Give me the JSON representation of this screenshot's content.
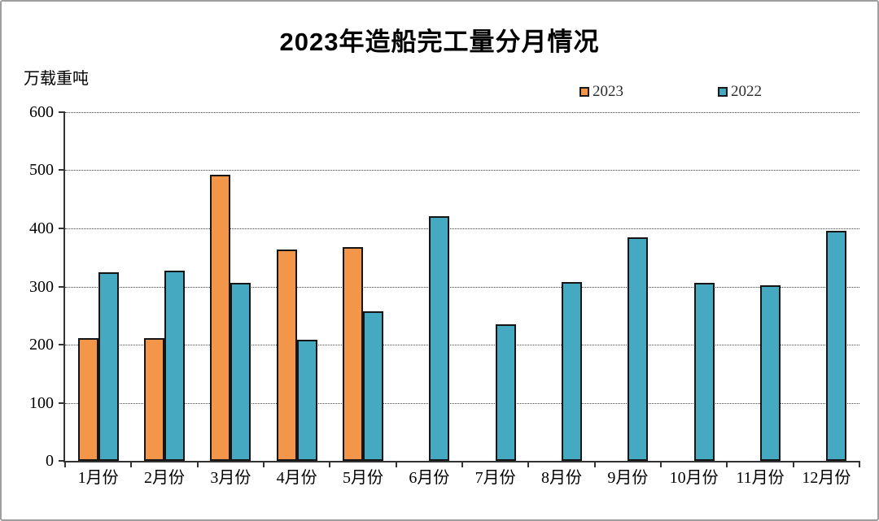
{
  "header": {
    "title": "2023年造船完工量分月情况"
  },
  "axes": {
    "y_unit_label": "万载重吨"
  },
  "legend": {
    "items": [
      {
        "label": "2023",
        "color": "#F4964A"
      },
      {
        "label": "2022",
        "color": "#45A9C2"
      }
    ]
  },
  "chart_data": {
    "type": "bar",
    "title": "2023年造船完工量分月情况",
    "ylabel": "万载重吨",
    "xlabel": "",
    "categories": [
      "1月份",
      "2月份",
      "3月份",
      "4月份",
      "5月份",
      "6月份",
      "7月份",
      "8月份",
      "9月份",
      "10月份",
      "11月份",
      "12月份"
    ],
    "series": [
      {
        "name": "2023",
        "color": "#F4964A",
        "values": [
          211,
          211,
          493,
          364,
          368,
          null,
          null,
          null,
          null,
          null,
          null,
          null
        ]
      },
      {
        "name": "2022",
        "color": "#45A9C2",
        "values": [
          325,
          327,
          307,
          209,
          257,
          421,
          235,
          308,
          385,
          307,
          302,
          396
        ]
      }
    ],
    "ylim": [
      0,
      600
    ],
    "yticks": [
      0,
      100,
      200,
      300,
      400,
      500,
      600
    ],
    "grid": "horizontal-dotted",
    "legend_position": "top-right"
  }
}
